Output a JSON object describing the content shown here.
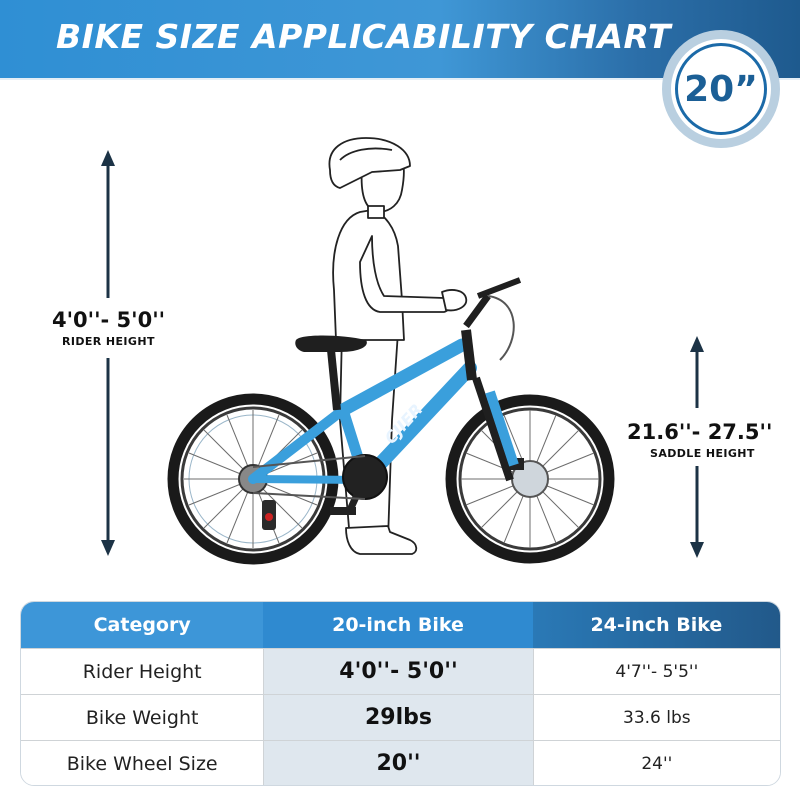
{
  "header": {
    "title": "BIKE SIZE APPLICABILITY CHART",
    "badge": "20”"
  },
  "rider_height": {
    "value": "4'0''- 5'0''",
    "label": "RIDER HEIGHT"
  },
  "saddle_height": {
    "value": "21.6''- 27.5''",
    "label": "SADDLE HEIGHT"
  },
  "table": {
    "headers": [
      "Category",
      "20-inch Bike",
      "24-inch Bike"
    ],
    "rows": [
      [
        "Rider Height",
        "4'0''- 5'0''",
        "4'7''- 5'5''"
      ],
      [
        "Bike Weight",
        "29lbs",
        "33.6 lbs"
      ],
      [
        "Bike Wheel Size",
        "20''",
        "24''"
      ]
    ]
  },
  "colors": {
    "banner": "#3f97d6",
    "bike_frame": "#3a9fdc",
    "table_header": "#2f8ad0",
    "highlight_column": "#dfe7ee",
    "arrow": "#1c3346"
  },
  "icons": [
    "up-down-arrow-icon",
    "rider-outline-icon",
    "bicycle-icon"
  ]
}
